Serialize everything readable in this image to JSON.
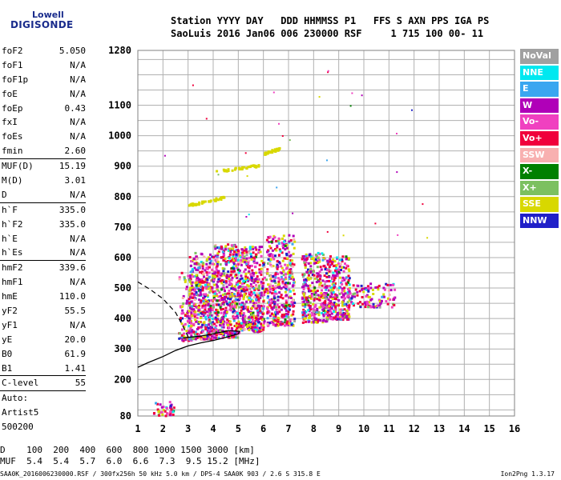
{
  "logo": {
    "line1": "Lowell",
    "line2": "DIGISONDE"
  },
  "header": {
    "line1": "Station YYYY DAY   DDD HHMMSS P1   FFS S AXN PPS IGA PS",
    "line2": "SaoLuis 2016 Jan06 006 230000 RSF     1 715 100 00- 11"
  },
  "params": [
    {
      "name": "foF2",
      "value": "5.050"
    },
    {
      "name": "foF1",
      "value": "N/A"
    },
    {
      "name": "foF1p",
      "value": "N/A"
    },
    {
      "name": "foE",
      "value": "N/A"
    },
    {
      "name": "foEp",
      "value": "0.43"
    },
    {
      "name": "fxI",
      "value": "N/A"
    },
    {
      "name": "foEs",
      "value": "N/A"
    },
    {
      "name": "fmin",
      "value": "2.60"
    },
    {
      "sep": true
    },
    {
      "name": "MUF(D)",
      "value": "15.19"
    },
    {
      "name": "M(D)",
      "value": "3.01"
    },
    {
      "name": "D",
      "value": "N/A"
    },
    {
      "sep": true
    },
    {
      "name": "h`F",
      "value": "335.0"
    },
    {
      "name": "h`F2",
      "value": "335.0"
    },
    {
      "name": "h`E",
      "value": "N/A"
    },
    {
      "name": "h`Es",
      "value": "N/A"
    },
    {
      "sep": true
    },
    {
      "name": "hmF2",
      "value": "339.6"
    },
    {
      "name": "hmF1",
      "value": "N/A"
    },
    {
      "name": "hmE",
      "value": "110.0"
    },
    {
      "name": "yF2",
      "value": "55.5"
    },
    {
      "name": "yF1",
      "value": "N/A"
    },
    {
      "name": "yE",
      "value": "20.0"
    },
    {
      "name": "B0",
      "value": "61.9"
    },
    {
      "name": "B1",
      "value": "1.41"
    },
    {
      "sep": true
    },
    {
      "name": "C-level",
      "value": "55"
    },
    {
      "sep": true
    },
    {
      "name": "Auto:",
      "value": ""
    },
    {
      "name": "Artist5",
      "value": ""
    },
    {
      "name": "500200",
      "value": ""
    }
  ],
  "legend": [
    {
      "label": "NoVal",
      "color": "#a0a0a0"
    },
    {
      "label": "NNE",
      "color": "#00e8f0"
    },
    {
      "label": "E",
      "color": "#3aa6f0"
    },
    {
      "label": "W",
      "color": "#b000b8"
    },
    {
      "label": "Vo-",
      "color": "#f040c0"
    },
    {
      "label": "Vo+",
      "color": "#f0003c"
    },
    {
      "label": "SSW",
      "color": "#f8b0b0"
    },
    {
      "label": "X-",
      "color": "#008000"
    },
    {
      "label": "X+",
      "color": "#7cc060"
    },
    {
      "label": "SSE",
      "color": "#d8d800"
    },
    {
      "label": "NNW",
      "color": "#2020c8"
    }
  ],
  "chart_data": {
    "type": "scatter",
    "x_ticks": [
      1,
      2,
      3,
      4,
      5,
      6,
      7,
      8,
      9,
      10,
      11,
      12,
      13,
      14,
      15,
      16
    ],
    "y_ticks": [
      80,
      200,
      300,
      400,
      500,
      600,
      700,
      800,
      900,
      1000,
      1100,
      1280
    ],
    "xlim": [
      1,
      16
    ],
    "ylim": [
      80,
      1280
    ],
    "grid": true,
    "legend_position": "right",
    "clusters": [
      {
        "x": [
          1.6,
          2.4
        ],
        "y": [
          82,
          130
        ],
        "n": 40
      },
      {
        "x": [
          2.6,
          3.1
        ],
        "y": [
          330,
          480
        ],
        "n": 70
      },
      {
        "x": [
          3.0,
          4.0
        ],
        "y": [
          335,
          620
        ],
        "n": 380
      },
      {
        "x": [
          4.0,
          5.0
        ],
        "y": [
          340,
          650
        ],
        "n": 420
      },
      {
        "x": [
          5.0,
          6.0
        ],
        "y": [
          360,
          640
        ],
        "n": 380
      },
      {
        "x": [
          6.1,
          7.2
        ],
        "y": [
          380,
          680
        ],
        "n": 380
      },
      {
        "x": [
          7.5,
          8.5
        ],
        "y": [
          390,
          620
        ],
        "n": 330
      },
      {
        "x": [
          8.5,
          9.4
        ],
        "y": [
          400,
          610
        ],
        "n": 280
      },
      {
        "x": [
          9.3,
          11.2
        ],
        "y": [
          440,
          520
        ],
        "n": 110
      },
      {
        "x": [
          2.6,
          6.5
        ],
        "y": [
          440,
          560
        ],
        "n": 170
      }
    ],
    "trails": [
      {
        "x": [
          4.0,
          5.8
        ],
        "y": [
          885,
          905
        ],
        "color": "#d8d800"
      },
      {
        "x": [
          6.0,
          6.6
        ],
        "y": [
          945,
          960
        ],
        "color": "#d8d800"
      },
      {
        "x": [
          3.0,
          4.4
        ],
        "y": [
          775,
          800
        ],
        "color": "#d8d800"
      }
    ],
    "profile_solid": {
      "x": [
        1,
        1.4,
        2,
        2.5,
        3,
        3.5,
        4,
        4.5,
        5,
        5.05,
        4.6,
        4.0,
        3.5,
        3.0,
        2.8
      ],
      "y": [
        240,
        255,
        275,
        295,
        310,
        320,
        328,
        338,
        350,
        358,
        360,
        350,
        342,
        338,
        336
      ]
    },
    "profile_dashed": {
      "x": [
        1,
        1.5,
        2,
        2.5,
        2.8,
        3.0
      ],
      "y": [
        520,
        495,
        465,
        420,
        375,
        340
      ]
    },
    "bottom_scale": {
      "D_label": "D",
      "D": [
        "100",
        "200",
        "400",
        "600",
        "800",
        "1000",
        "1500",
        "3000"
      ],
      "D_unit": "[km]",
      "MUF_label": "MUF",
      "MUF": [
        "5.4",
        "5.4",
        "5.7",
        "6.0",
        "6.6",
        "7.3",
        "9.5",
        "15.2"
      ],
      "MUF_unit": "[MHz]"
    },
    "footer": "SAA0K_2016006230000.RSF / 300fx256h 50 kHz 5.0 km / DPS-4 SAA0K 903 / 2.6 S 315.8 E",
    "version": "Ion2Png 1.3.17"
  }
}
